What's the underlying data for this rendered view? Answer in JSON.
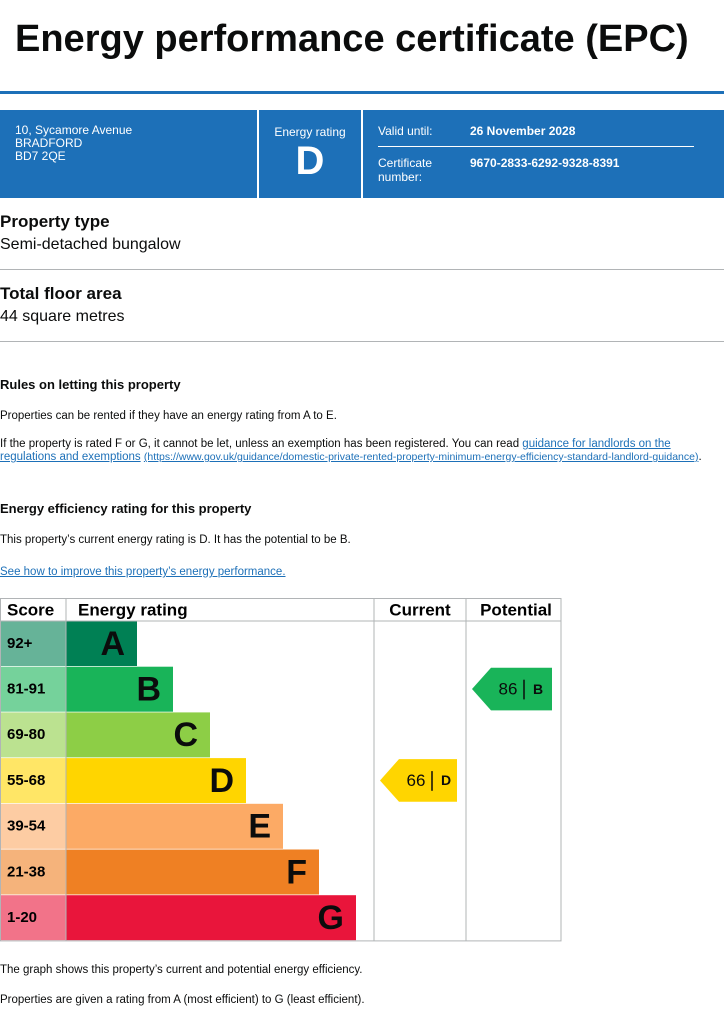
{
  "header": {
    "title": "Energy performance certificate (EPC)"
  },
  "summary": {
    "address": [
      "10, Sycamore Avenue",
      "BRADFORD",
      "BD7 2QE"
    ],
    "rating_label": "Energy rating",
    "rating": "D",
    "valid_until_label": "Valid until:",
    "valid_until": "26 November 2028",
    "certificate_label": "Certificate number:",
    "certificate_number": "9670-2833-6292-9328-8391"
  },
  "property": [
    {
      "label": "Property type",
      "value": "Semi-detached bungalow"
    },
    {
      "label": "Total floor area",
      "value": "44 square metres"
    }
  ],
  "letting": {
    "heading": "Rules on letting this property",
    "paragraph": "Properties can be rented if they have an energy rating from A to E.",
    "exemption_text": "If the property is rated F or G, it cannot be let, unless an exemption has been registered. You can read",
    "exemption_link": "guidance for landlords on the regulations and exemptions",
    "exemption_url": "(https://www.gov.uk/guidance/domestic-private-rented-property-minimum-energy-efficiency-standard-landlord-guidance)",
    "exemption_end": "."
  },
  "efficiency": {
    "heading": "Energy efficiency rating for this property",
    "paragraph": "This property’s current energy rating is D. It has the potential to be B.",
    "link": "See how to improve this property’s energy performance.",
    "table": {
      "headers": [
        "Score",
        "Energy rating",
        "Current",
        "Potential"
      ],
      "bands": [
        {
          "score": "92+",
          "letter": "A",
          "color": "#008054",
          "score_color": "#66b398"
        },
        {
          "score": "81-91",
          "letter": "B",
          "color": "#19b459",
          "score_color": "#75d29b"
        },
        {
          "score": "69-80",
          "letter": "C",
          "color": "#8dce46",
          "score_color": "#bbe290"
        },
        {
          "score": "55-68",
          "letter": "D",
          "color": "#ffd500",
          "score_color": "#ffe666"
        },
        {
          "score": "39-54",
          "letter": "E",
          "color": "#fcaa65",
          "score_color": "#fdcca3"
        },
        {
          "score": "21-38",
          "letter": "F",
          "color": "#ef8023",
          "score_color": "#f5b37b"
        },
        {
          "score": "1-20",
          "letter": "G",
          "color": "#e9153b",
          "score_color": "#f27389"
        }
      ],
      "current": {
        "value": "66",
        "letter": "D"
      },
      "potential": {
        "value": "86",
        "letter": "B"
      }
    },
    "notes": [
      "The graph shows this property’s current and potential energy efficiency.",
      "Properties are given a rating from A (most efficient) to G (least efficient)."
    ]
  }
}
